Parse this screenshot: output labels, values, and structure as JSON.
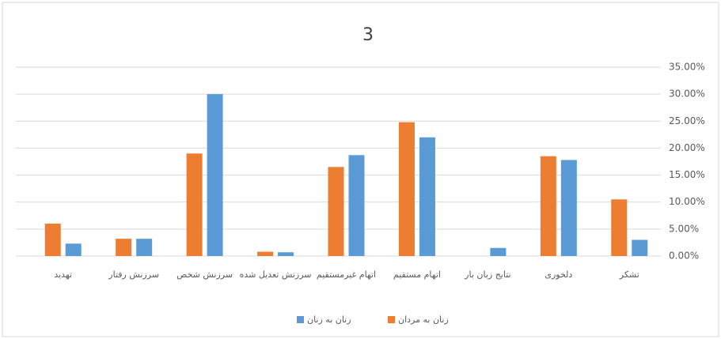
{
  "chart_data": {
    "type": "bar",
    "title": "3",
    "categories": [
      "تهدید",
      "سرزنش رفتار",
      "سرزنش شخص",
      "سرزنش تعدیل شده",
      "اتهام غیرمستقیم",
      "اتهام مستقیم",
      "نتایج زبان بار",
      "دلخوری",
      "تشکر"
    ],
    "series": [
      {
        "name": "زنان به مردان",
        "color": "#ED7D31",
        "values": [
          6,
          3.2,
          19,
          0.8,
          16.5,
          24.8,
          0,
          18.5,
          10.5
        ]
      },
      {
        "name": "زنان به زنان",
        "color": "#5B9BD5",
        "values": [
          2.3,
          3.2,
          30,
          0.7,
          18.7,
          22,
          1.5,
          17.8,
          3
        ]
      }
    ],
    "ylim": [
      0,
      35
    ],
    "yticks": [
      {
        "value": 0,
        "label": "0.00%"
      },
      {
        "value": 5,
        "label": "5.00%"
      },
      {
        "value": 10,
        "label": "10.00%"
      },
      {
        "value": 15,
        "label": "15.00%"
      },
      {
        "value": 20,
        "label": "20.00%"
      },
      {
        "value": 25,
        "label": "25.00%"
      },
      {
        "value": 30,
        "label": "30.00%"
      },
      {
        "value": 35,
        "label": "35.00%"
      }
    ],
    "grid": true
  }
}
